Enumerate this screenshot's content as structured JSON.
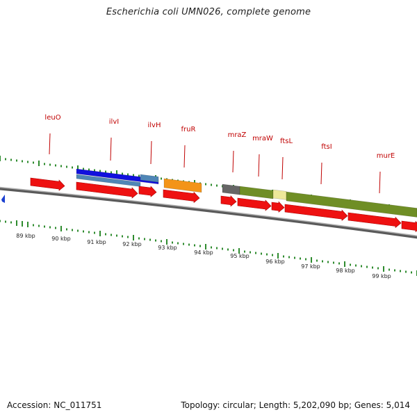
{
  "title": "Escherichia coli UMN026, complete genome",
  "footer": {
    "accession": "Accession: NC_011751",
    "topology": "Topology: circular; Length: 5,202,090 bp; Genes: 5,014"
  },
  "colors": {
    "gene_arrow": "#ee1111",
    "label": "#c00000",
    "tick": "#2e8b2e",
    "backbone": "#808080",
    "marker": "#1a3fd0"
  },
  "genes": [
    {
      "name": "leuO"
    },
    {
      "name": "ilvI"
    },
    {
      "name": "ilvH"
    },
    {
      "name": "fruR"
    },
    {
      "name": "mraZ"
    },
    {
      "name": "mraW"
    },
    {
      "name": "ftsL"
    },
    {
      "name": "ftsI"
    },
    {
      "name": "murE"
    }
  ],
  "kbp_labels": [
    "89 kbp",
    "90 kbp",
    "91 kbp",
    "92 kbp",
    "93 kbp",
    "94 kbp",
    "95 kbp",
    "96 kbp",
    "97 kbp",
    "98 kbp",
    "99 kbp"
  ]
}
